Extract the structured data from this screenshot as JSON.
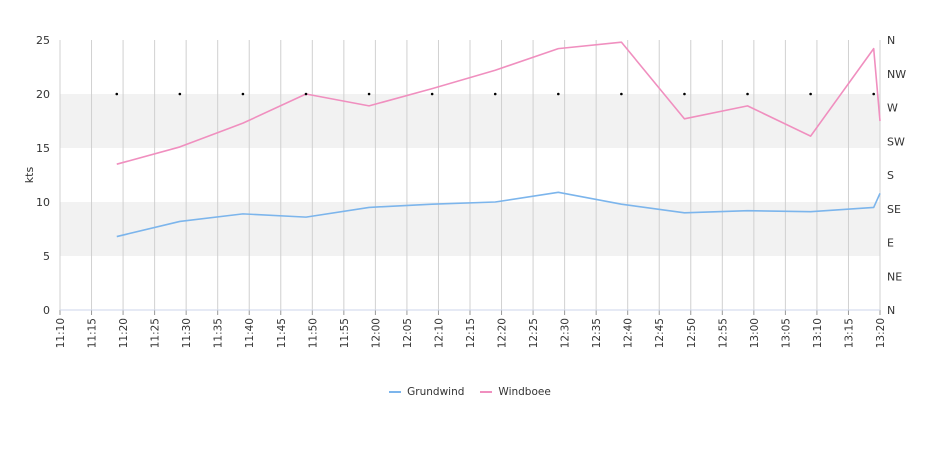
{
  "chart_data": {
    "type": "line",
    "ylabel": "kts",
    "ylim": [
      0,
      25
    ],
    "yticks": [
      "0",
      "5",
      "10",
      "15",
      "20",
      "25"
    ],
    "y2ticks": [
      "N",
      "NE",
      "E",
      "SE",
      "S",
      "SW",
      "W",
      "NW",
      "N"
    ],
    "xticks": [
      "11:10",
      "11:15",
      "11:20",
      "11:25",
      "11:30",
      "11:35",
      "11:40",
      "11:45",
      "11:50",
      "11:55",
      "12:00",
      "12:05",
      "12:10",
      "12:15",
      "12:20",
      "12:25",
      "12:30",
      "12:35",
      "12:40",
      "12:45",
      "12:50",
      "12:55",
      "13:00",
      "13:05",
      "13:10",
      "13:15",
      "13:20"
    ],
    "series": [
      {
        "name": "Grundwind",
        "color": "#7cb5ec",
        "x": [
          "11:19",
          "11:29",
          "11:39",
          "11:49",
          "11:59",
          "12:09",
          "12:19",
          "12:29",
          "12:39",
          "12:49",
          "12:59",
          "13:09",
          "13:19",
          "13:20"
        ],
        "values": [
          6.8,
          8.2,
          8.9,
          8.6,
          9.5,
          9.8,
          10.0,
          10.9,
          9.8,
          9.0,
          9.2,
          9.1,
          9.5,
          10.8
        ]
      },
      {
        "name": "Windboee",
        "color": "#f08fbf",
        "x": [
          "11:19",
          "11:29",
          "11:39",
          "11:49",
          "11:59",
          "12:09",
          "12:19",
          "12:29",
          "12:39",
          "12:49",
          "12:59",
          "13:09",
          "13:19",
          "13:20"
        ],
        "values": [
          13.5,
          15.1,
          17.3,
          20.0,
          18.9,
          20.5,
          22.2,
          24.2,
          24.8,
          17.7,
          18.9,
          16.1,
          24.2,
          17.5
        ]
      }
    ],
    "direction_markers": {
      "x": [
        "11:19",
        "11:29",
        "11:39",
        "11:49",
        "11:59",
        "12:09",
        "12:19",
        "12:29",
        "12:39",
        "12:49",
        "12:59",
        "13:09",
        "13:19"
      ],
      "values": [
        "W",
        "W",
        "W",
        "W",
        "W",
        "W",
        "W",
        "W",
        "W",
        "W",
        "W",
        "W",
        "W"
      ]
    },
    "grid": true,
    "legend_position": "bottom-center"
  },
  "legend": [
    {
      "label": "Grundwind",
      "color": "#7cb5ec"
    },
    {
      "label": "Windboee",
      "color": "#f08fbf"
    }
  ]
}
